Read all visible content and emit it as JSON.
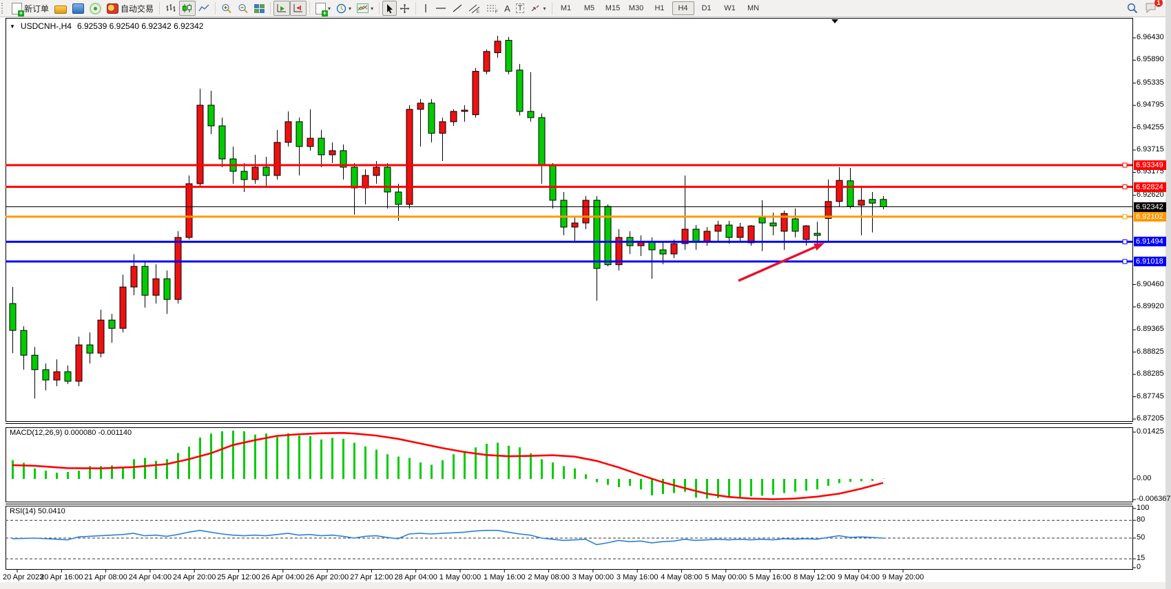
{
  "toolbar": {
    "new_order_label": "新订单",
    "autotrade_label": "自动交易",
    "timeframes": [
      "M1",
      "M5",
      "M15",
      "M30",
      "H1",
      "H4",
      "D1",
      "W1",
      "MN"
    ],
    "active_timeframe": "H4",
    "notification_count": "1",
    "icons": {
      "new_order": "doc-plus",
      "gold": "gold-bar",
      "terminal": "terminal",
      "signal": "signal",
      "autotrade": "autotrade-seal",
      "bar_chart": "bars",
      "candle_chart": "candles",
      "line_chart": "polyline",
      "zoom_in": "magnifier-plus",
      "zoom_out": "magnifier-minus",
      "tile_windows": "grid-4",
      "auto_scroll": "axis-play",
      "chart_shift": "axis-shift",
      "indicators": "doc-plus",
      "periods": "clock",
      "templates": "mini-chart",
      "cursor": "arrow-pointer",
      "crosshair": "crosshair",
      "vline": "vertical-line",
      "hline": "horizontal-line",
      "trendline": "diagonal-line",
      "channel": "parallel-lines-E",
      "fibonacci": "dashed-lines-F",
      "text": "letter-A",
      "label": "letter-T-box",
      "shapes": "arrows",
      "search": "magnifier",
      "chat": "speech-bubble",
      "caret": "▾"
    }
  },
  "chart": {
    "symbol_period": "USDCNH-,H4",
    "quotes": "6.92539 6.92540 6.92342 6.92342"
  },
  "price_axis": {
    "ticks": [
      "6.96430",
      "6.95890",
      "6.95335",
      "6.94795",
      "6.94255",
      "6.93715",
      "6.93175",
      "6.92620",
      "6.90460",
      "6.89920",
      "6.89365",
      "6.88825",
      "6.88285",
      "6.87745",
      "6.87205"
    ]
  },
  "levels": [
    {
      "value": "6.93349",
      "color": "#ff0000"
    },
    {
      "value": "6.92824",
      "color": "#ff0000"
    },
    {
      "value": "6.92342",
      "color": "#000000"
    },
    {
      "value": "6.92102",
      "color": "#ff9900"
    },
    {
      "value": "6.91494",
      "color": "#0000ff"
    },
    {
      "value": "6.91018",
      "color": "#0000ff"
    }
  ],
  "time_axis": [
    "20 Apr 2023",
    "20 Apr 16:00",
    "21 Apr 08:00",
    "24 Apr 04:00",
    "24 Apr 20:00",
    "25 Apr 12:00",
    "26 Apr 04:00",
    "26 Apr 20:00",
    "27 Apr 12:00",
    "28 Apr 04:00",
    "1 May 00:00",
    "1 May 16:00",
    "2 May 08:00",
    "3 May 00:00",
    "3 May 16:00",
    "4 May 08:00",
    "5 May 00:00",
    "5 May 16:00",
    "8 May 12:00",
    "9 May 04:00",
    "9 May 20:00"
  ],
  "macd": {
    "label": "MACD(12,26,9)",
    "main_value": "0.000080",
    "signal_value": "-0.001140",
    "axis": [
      "0.01425",
      "0.00",
      "-0.006367"
    ]
  },
  "rsi": {
    "label": "RSI(14)",
    "value": "50.0410",
    "axis": [
      "100",
      "80",
      "50",
      "15",
      "0"
    ]
  },
  "chart_data": {
    "type": "candlestick",
    "symbol": "USDCNH-",
    "timeframe": "H4",
    "title": "USDCNH-,H4",
    "ylim": [
      6.87205,
      6.9643
    ],
    "grid": false,
    "up_color": "#ee1111",
    "down_color": "#00cc00",
    "price_ticks": [
      6.9643,
      6.9589,
      6.95335,
      6.94795,
      6.94255,
      6.93715,
      6.93175,
      6.9262,
      6.9046,
      6.8992,
      6.89365,
      6.88825,
      6.88285,
      6.87745,
      6.87205
    ],
    "hlines": [
      {
        "price": 6.93349,
        "color": "#ff0000",
        "width": 3
      },
      {
        "price": 6.92824,
        "color": "#ff0000",
        "width": 3
      },
      {
        "price": 6.92342,
        "color": "#000000",
        "width": 1
      },
      {
        "price": 6.92102,
        "color": "#ff9900",
        "width": 3
      },
      {
        "price": 6.91494,
        "color": "#0000ff",
        "width": 3
      },
      {
        "price": 6.91018,
        "color": "#0000ff",
        "width": 3
      }
    ],
    "ohlc": [
      [
        6.9,
        6.904,
        6.888,
        6.8935
      ],
      [
        6.8935,
        6.8945,
        6.884,
        6.8875
      ],
      [
        6.8875,
        6.8895,
        6.877,
        6.884
      ],
      [
        6.884,
        6.8855,
        6.879,
        6.8815
      ],
      [
        6.8815,
        6.8865,
        6.88,
        6.8835
      ],
      [
        6.8835,
        6.885,
        6.8805,
        6.8812
      ],
      [
        6.8812,
        6.892,
        6.88,
        6.89
      ],
      [
        6.89,
        6.893,
        6.8855,
        6.888
      ],
      [
        6.888,
        6.8985,
        6.887,
        6.896
      ],
      [
        6.896,
        6.8975,
        6.8905,
        6.894
      ],
      [
        6.894,
        6.907,
        6.893,
        6.904
      ],
      [
        6.904,
        6.9119,
        6.902,
        6.909
      ],
      [
        6.909,
        6.91,
        6.899,
        6.902
      ],
      [
        6.902,
        6.9095,
        6.9,
        6.906
      ],
      [
        6.906,
        6.908,
        6.8975,
        6.901
      ],
      [
        6.901,
        6.9175,
        6.9,
        6.916
      ],
      [
        6.916,
        6.931,
        6.9155,
        6.929
      ],
      [
        6.929,
        6.952,
        6.9285,
        6.948
      ],
      [
        6.948,
        6.9515,
        6.941,
        6.943
      ],
      [
        6.943,
        6.945,
        6.933,
        6.935
      ],
      [
        6.935,
        6.938,
        6.929,
        6.932
      ],
      [
        6.932,
        6.934,
        6.927,
        6.93
      ],
      [
        6.93,
        6.936,
        6.929,
        6.933
      ],
      [
        6.933,
        6.9355,
        6.928,
        6.931
      ],
      [
        6.931,
        6.942,
        6.93,
        6.939
      ],
      [
        6.939,
        6.9465,
        6.938,
        6.944
      ],
      [
        6.944,
        6.945,
        6.931,
        6.938
      ],
      [
        6.938,
        6.947,
        6.937,
        6.94
      ],
      [
        6.94,
        6.942,
        6.933,
        6.936
      ],
      [
        6.936,
        6.939,
        6.934,
        6.937
      ],
      [
        6.937,
        6.9385,
        6.93,
        6.933
      ],
      [
        6.933,
        6.934,
        6.9215,
        6.928
      ],
      [
        6.928,
        6.9325,
        6.924,
        6.931
      ],
      [
        6.931,
        6.9345,
        6.929,
        6.933
      ],
      [
        6.933,
        6.934,
        6.923,
        6.927
      ],
      [
        6.927,
        6.929,
        6.92,
        6.924
      ],
      [
        6.924,
        6.948,
        6.923,
        6.947
      ],
      [
        6.947,
        6.9495,
        6.938,
        6.9485
      ],
      [
        6.9485,
        6.9495,
        6.939,
        6.9412
      ],
      [
        6.9412,
        6.945,
        6.9345,
        6.944
      ],
      [
        6.944,
        6.947,
        6.943,
        6.9465
      ],
      [
        6.9465,
        6.948,
        6.944,
        6.9468
      ],
      [
        6.9457,
        6.957,
        6.945,
        6.9562
      ],
      [
        6.9562,
        6.9615,
        6.9555,
        6.961
      ],
      [
        6.9607,
        6.9648,
        6.9595,
        6.9635
      ],
      [
        6.9637,
        6.9645,
        6.9555,
        6.9562
      ],
      [
        6.9565,
        6.958,
        6.9455,
        6.9465
      ],
      [
        6.9465,
        6.956,
        6.944,
        6.945
      ],
      [
        6.945,
        6.946,
        6.929,
        6.9334
      ],
      [
        6.9334,
        6.934,
        6.923,
        6.925
      ],
      [
        6.925,
        6.927,
        6.9165,
        6.9185
      ],
      [
        6.9185,
        6.921,
        6.915,
        6.9195
      ],
      [
        6.9195,
        6.926,
        6.918,
        6.925
      ],
      [
        6.925,
        6.926,
        6.9007,
        6.9085
      ],
      [
        6.9235,
        6.924,
        6.909,
        6.9094
      ],
      [
        6.9094,
        6.918,
        6.908,
        6.916
      ],
      [
        6.916,
        6.9175,
        6.912,
        6.914
      ],
      [
        6.914,
        6.9165,
        6.9115,
        6.915
      ],
      [
        6.915,
        6.916,
        6.906,
        6.913
      ],
      [
        6.913,
        6.915,
        6.9095,
        6.912
      ],
      [
        6.912,
        6.9155,
        6.911,
        6.9145
      ],
      [
        6.9145,
        6.931,
        6.913,
        6.918
      ],
      [
        6.918,
        6.919,
        6.913,
        6.915
      ],
      [
        6.915,
        6.9185,
        6.914,
        6.9175
      ],
      [
        6.9175,
        6.92,
        6.915,
        6.919
      ],
      [
        6.919,
        6.92,
        6.9145,
        6.916
      ],
      [
        6.916,
        6.9195,
        6.915,
        6.9185
      ],
      [
        6.9147,
        6.919,
        6.914,
        6.9188
      ],
      [
        6.9208,
        6.925,
        6.9127,
        6.9195
      ],
      [
        6.9195,
        6.922,
        6.9165,
        6.9188
      ],
      [
        6.9175,
        6.9225,
        6.913,
        6.9218
      ],
      [
        6.9205,
        6.923,
        6.916,
        6.9175
      ],
      [
        6.9155,
        6.919,
        6.914,
        6.9188
      ],
      [
        6.917,
        6.9198,
        6.9143,
        6.9165
      ],
      [
        6.9206,
        6.93,
        6.9148,
        6.9247
      ],
      [
        6.9247,
        6.933,
        6.9235,
        6.9298
      ],
      [
        6.9297,
        6.9328,
        6.923,
        6.9235
      ],
      [
        6.9238,
        6.928,
        6.9165,
        6.925
      ],
      [
        6.9252,
        6.927,
        6.9172,
        6.9243
      ],
      [
        6.9252,
        6.926,
        6.9228,
        6.92342
      ]
    ],
    "macd": {
      "label": "MACD(12,26,9)",
      "main": 8e-05,
      "signal_current": -0.00114,
      "ylim": [
        -0.006367,
        0.01425
      ],
      "histogram": [
        0.0057,
        0.0049,
        0.0032,
        0.0025,
        0.0019,
        0.0021,
        0.0025,
        0.0039,
        0.0039,
        0.0041,
        0.0036,
        0.006,
        0.0064,
        0.0055,
        0.006,
        0.0079,
        0.0098,
        0.0126,
        0.0138,
        0.0145,
        0.0147,
        0.0145,
        0.0135,
        0.0138,
        0.0128,
        0.0139,
        0.0132,
        0.013,
        0.012,
        0.0125,
        0.0122,
        0.011,
        0.0099,
        0.0089,
        0.0075,
        0.0068,
        0.0064,
        0.005,
        0.0043,
        0.0057,
        0.0075,
        0.0085,
        0.0096,
        0.0107,
        0.011,
        0.0101,
        0.0096,
        0.0078,
        0.006,
        0.005,
        0.0039,
        0.0032,
        0.0014,
        -0.001,
        -0.0018,
        -0.0025,
        -0.0021,
        -0.0032,
        -0.005,
        -0.0046,
        -0.0043,
        -0.0039,
        -0.0057,
        -0.006,
        -0.0058,
        -0.0057,
        -0.0055,
        -0.0053,
        -0.0051,
        -0.0048,
        -0.0043,
        -0.0039,
        -0.0036,
        -0.0032,
        -0.0021,
        -0.0013,
        -0.0009,
        -0.0007,
        -0.0006,
        8e-05
      ],
      "signal_points": [
        [
          0,
          0.0042
        ],
        [
          2,
          0.004
        ],
        [
          5,
          0.0033
        ],
        [
          8,
          0.0032
        ],
        [
          11,
          0.0036
        ],
        [
          14,
          0.0045
        ],
        [
          16,
          0.006
        ],
        [
          18,
          0.0078
        ],
        [
          20,
          0.0103
        ],
        [
          22,
          0.0118
        ],
        [
          24,
          0.0131
        ],
        [
          26,
          0.0136
        ],
        [
          28,
          0.0139
        ],
        [
          30,
          0.014
        ],
        [
          31,
          0.0138
        ],
        [
          33,
          0.0132
        ],
        [
          35,
          0.0122
        ],
        [
          37,
          0.0108
        ],
        [
          39,
          0.0094
        ],
        [
          41,
          0.0082
        ],
        [
          43,
          0.0073
        ],
        [
          45,
          0.0069
        ],
        [
          47,
          0.007
        ],
        [
          49,
          0.0072
        ],
        [
          51,
          0.0068
        ],
        [
          53,
          0.0055
        ],
        [
          55,
          0.0035
        ],
        [
          57,
          0.0012
        ],
        [
          59,
          -0.001
        ],
        [
          61,
          -0.0028
        ],
        [
          63,
          -0.0045
        ],
        [
          65,
          -0.0055
        ],
        [
          67,
          -0.006
        ],
        [
          69,
          -0.0062
        ],
        [
          71,
          -0.006
        ],
        [
          73,
          -0.0054
        ],
        [
          75,
          -0.0045
        ],
        [
          77,
          -0.003
        ],
        [
          79,
          -0.0012
        ]
      ],
      "hist_color": "#00cc00",
      "signal_color": "#ff0000"
    },
    "rsi": {
      "label": "RSI(14)",
      "current": 50.041,
      "levels": [
        80,
        50,
        15
      ],
      "ylim": [
        0,
        100
      ],
      "line_color": "#2a7fde",
      "points": [
        [
          0,
          49
        ],
        [
          2,
          50
        ],
        [
          4,
          48
        ],
        [
          5,
          47
        ],
        [
          6,
          52
        ],
        [
          8,
          54
        ],
        [
          10,
          56
        ],
        [
          11,
          58
        ],
        [
          12,
          54
        ],
        [
          13,
          55
        ],
        [
          14,
          53
        ],
        [
          15,
          56
        ],
        [
          16,
          60
        ],
        [
          17,
          63
        ],
        [
          18,
          60
        ],
        [
          19,
          57
        ],
        [
          20,
          55
        ],
        [
          21,
          54
        ],
        [
          22,
          55
        ],
        [
          23,
          54
        ],
        [
          24,
          56
        ],
        [
          25,
          58
        ],
        [
          26,
          55
        ],
        [
          27,
          56
        ],
        [
          28,
          54
        ],
        [
          29,
          55
        ],
        [
          30,
          53
        ],
        [
          31,
          50
        ],
        [
          32,
          53
        ],
        [
          33,
          54
        ],
        [
          34,
          51
        ],
        [
          35,
          49
        ],
        [
          36,
          57
        ],
        [
          37,
          58
        ],
        [
          38,
          57
        ],
        [
          39,
          58
        ],
        [
          40,
          59
        ],
        [
          41,
          60
        ],
        [
          42,
          62
        ],
        [
          43,
          63
        ],
        [
          44,
          63
        ],
        [
          45,
          60
        ],
        [
          46,
          57
        ],
        [
          47,
          55
        ],
        [
          48,
          50
        ],
        [
          49,
          48
        ],
        [
          50,
          46
        ],
        [
          51,
          47
        ],
        [
          52,
          48
        ],
        [
          53,
          39
        ],
        [
          54,
          42
        ],
        [
          55,
          46
        ],
        [
          56,
          44
        ],
        [
          57,
          45
        ],
        [
          58,
          42
        ],
        [
          59,
          44
        ],
        [
          60,
          45
        ],
        [
          61,
          48
        ],
        [
          62,
          46
        ],
        [
          63,
          47
        ],
        [
          64,
          48
        ],
        [
          65,
          47
        ],
        [
          66,
          48
        ],
        [
          67,
          47
        ],
        [
          68,
          48
        ],
        [
          69,
          47
        ],
        [
          70,
          49
        ],
        [
          71,
          48
        ],
        [
          72,
          49
        ],
        [
          73,
          48
        ],
        [
          74,
          51
        ],
        [
          75,
          54
        ],
        [
          76,
          51
        ],
        [
          77,
          52
        ],
        [
          78,
          51
        ],
        [
          79,
          50.04
        ]
      ]
    },
    "annotations": [
      {
        "type": "arrow",
        "from": [
          1072,
          408
        ],
        "to": [
          1197,
          353
        ],
        "color": "#e8112d",
        "width": 3.5
      }
    ]
  }
}
